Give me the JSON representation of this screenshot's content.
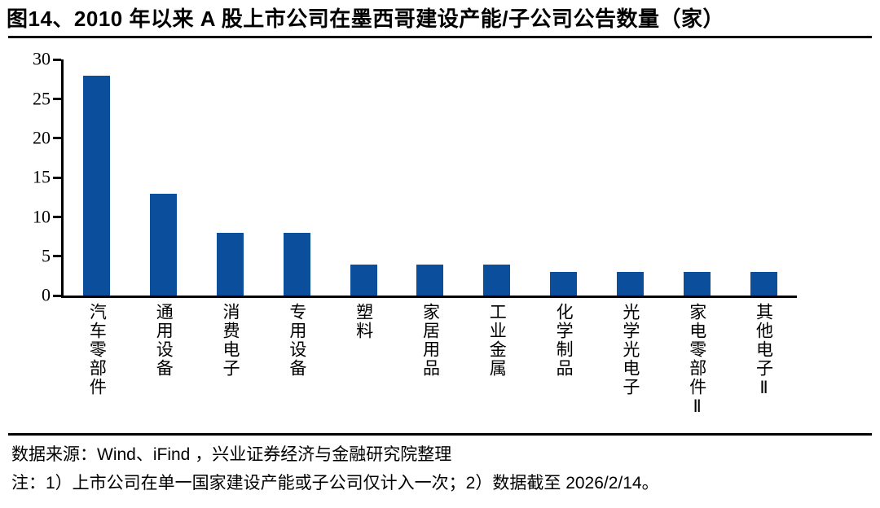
{
  "figure": {
    "title": "图14、2010 年以来 A 股上市公司在墨西哥建设产能/子公司公告数量（家）"
  },
  "chart_data": {
    "type": "bar",
    "title": "2010 年以来 A 股上市公司在墨西哥建设产能/子公司公告数量（家）",
    "categories": [
      "汽车零部件",
      "通用设备",
      "消费电子",
      "专用设备",
      "塑料",
      "家居用品",
      "工业金属",
      "化学制品",
      "光学光电子",
      "家电零部件Ⅱ",
      "其他电子Ⅱ"
    ],
    "values": [
      28,
      13,
      8,
      8,
      4,
      4,
      4,
      3,
      3,
      3,
      3
    ],
    "xlabel": "",
    "ylabel": "",
    "ylim": [
      0,
      30
    ],
    "yticks": [
      0,
      5,
      10,
      15,
      20,
      25,
      30
    ],
    "grid": false,
    "legend": "none",
    "bar_color": "#0B4E9B",
    "axis_color": "#000000"
  },
  "footer": {
    "source": "数据来源：Wind、iFind ，兴业证券经济与金融研究院整理",
    "note": "注：1）上市公司在单一国家建设产能或子公司仅计入一次；2）数据截至 2026/2/14。"
  }
}
